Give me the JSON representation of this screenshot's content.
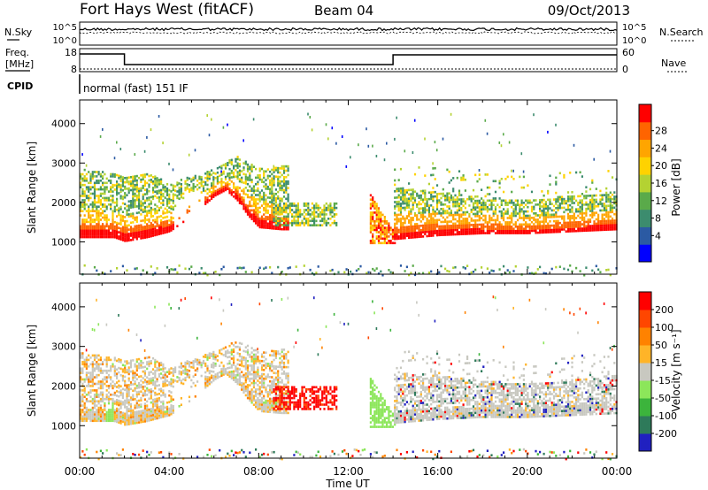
{
  "header": {
    "station": "Fort Hays West (fitACF)",
    "beam": "Beam 04",
    "date": "09/Oct/2013"
  },
  "top_panels": {
    "nsky_label": "N.Sky",
    "nsky_ticks": [
      "10^5",
      "10^0"
    ],
    "nsearch_label": "N.Search",
    "nsearch_ticks": [
      "10^5",
      "10^0"
    ],
    "freq_label_line1": "Freq.",
    "freq_label_line2": "[MHz]",
    "freq_ticks": [
      "18",
      "8"
    ],
    "nave_label": "Nave",
    "nave_ticks": [
      "60",
      "0"
    ],
    "cpid_label": "CPID",
    "cpid_value": "normal (fast) 151 IF"
  },
  "chart_data": [
    {
      "type": "heatmap",
      "name": "power",
      "ylabel": "Slant Range [km]",
      "yticks": [
        "4000",
        "3000",
        "2000",
        "1000"
      ],
      "ytick_values": [
        4000,
        3000,
        2000,
        1000
      ],
      "ylim": [
        180,
        4600
      ],
      "xlim": [
        0,
        24
      ],
      "colorbar_label": "Power [dB]",
      "colorbar_ticks": [
        "28",
        "24",
        "20",
        "16",
        "12",
        "8",
        "4"
      ],
      "colorbar_colors": [
        "#0000ff",
        "#2b5aa3",
        "#3c8c6e",
        "#5aaa4a",
        "#b4d232",
        "#ffd200",
        "#ffa500",
        "#ff6400",
        "#ff0000"
      ]
    },
    {
      "type": "heatmap",
      "name": "velocity",
      "ylabel": "Slant Range [km]",
      "yticks": [
        "4000",
        "3000",
        "2000",
        "1000"
      ],
      "ytick_values": [
        4000,
        3000,
        2000,
        1000
      ],
      "ylim": [
        180,
        4600
      ],
      "xlim": [
        0,
        24
      ],
      "xlabel": "Time UT",
      "xticks": [
        "00:00",
        "04:00",
        "08:00",
        "12:00",
        "16:00",
        "20:00",
        "00:00"
      ],
      "xtick_values": [
        0,
        4,
        8,
        12,
        16,
        20,
        24
      ],
      "colorbar_label": "Velocity [m s⁻¹]",
      "colorbar_ticks": [
        "200",
        "100",
        "50",
        "15",
        "-15",
        "-50",
        "-100",
        "-200"
      ],
      "colorbar_colors": [
        "#2020c0",
        "#2e7a5a",
        "#3cb43c",
        "#8ce65a",
        "#c8c8c0",
        "#ffb428",
        "#ff8200",
        "#ff4600",
        "#ff0000"
      ]
    }
  ]
}
